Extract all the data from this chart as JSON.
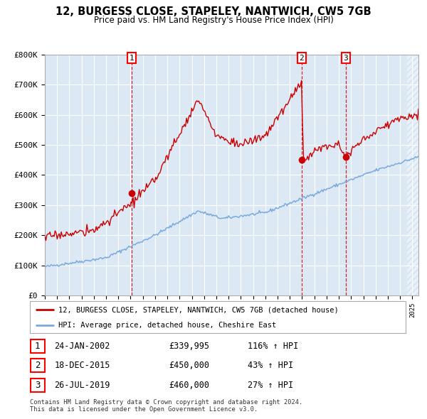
{
  "title": "12, BURGESS CLOSE, STAPELEY, NANTWICH, CW5 7GB",
  "subtitle": "Price paid vs. HM Land Registry's House Price Index (HPI)",
  "hpi_label": "HPI: Average price, detached house, Cheshire East",
  "property_label": "12, BURGESS CLOSE, STAPELEY, NANTWICH, CW5 7GB (detached house)",
  "footer1": "Contains HM Land Registry data © Crown copyright and database right 2024.",
  "footer2": "This data is licensed under the Open Government Licence v3.0.",
  "transactions": [
    {
      "num": 1,
      "date": "24-JAN-2002",
      "price": "£339,995",
      "pct": "116% ↑ HPI",
      "year": 2002.07,
      "value": 339995
    },
    {
      "num": 2,
      "date": "18-DEC-2015",
      "price": "£450,000",
      "pct": "43% ↑ HPI",
      "year": 2015.96,
      "value": 450000
    },
    {
      "num": 3,
      "date": "26-JUL-2019",
      "price": "£460,000",
      "pct": "27% ↑ HPI",
      "year": 2019.57,
      "value": 460000
    }
  ],
  "ylim": [
    0,
    800000
  ],
  "yticks": [
    0,
    100000,
    200000,
    300000,
    400000,
    500000,
    600000,
    700000,
    800000
  ],
  "ytick_labels": [
    "£0",
    "£100K",
    "£200K",
    "£300K",
    "£400K",
    "£500K",
    "£600K",
    "£700K",
    "£800K"
  ],
  "xmin": 1995.0,
  "xmax": 2025.5,
  "bg_color": "#dce9f5",
  "red_line_color": "#cc0000",
  "blue_line_color": "#7aaadd",
  "dashed_line_color": "#cc0000",
  "hatch_color": "#b8cfe8"
}
